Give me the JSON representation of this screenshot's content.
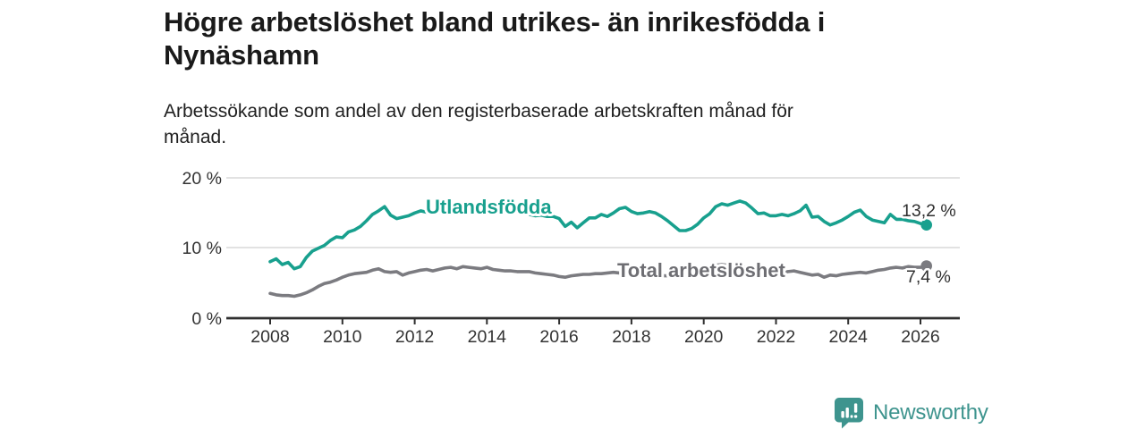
{
  "title": "Högre arbetslöshet bland utrikes- än inrikesfödda i Nynäshamn",
  "title_lines": [
    "Högre arbetslöshet bland utrikes- än inrikesfödda i",
    "Nynäshamn"
  ],
  "subtitle": "Arbetssökande som andel av den registerbaserade arbetskraften månad för månad.",
  "subtitle_lines": [
    "Arbetssökande som andel av den registerbaserade arbetskraften månad för",
    "månad."
  ],
  "branding": {
    "logo_text": "Newsworthy",
    "brand_color": "#3E948E"
  },
  "chart_data": {
    "type": "line",
    "unit": "%",
    "title": "Högre arbetslöshet bland utrikes- än inrikesfödda i Nynäshamn",
    "grid_on": true,
    "value_label_color": "#2f2f2f",
    "x_axis": {
      "ticks": [
        2008,
        2010,
        2012,
        2014,
        2016,
        2018,
        2020,
        2022,
        2024,
        2026
      ],
      "range_years": [
        2006.8,
        2027.1
      ]
    },
    "y_axis": {
      "tick_labels": [
        "20 %",
        "10 %",
        "0 %"
      ],
      "ticks": [
        20,
        10,
        0
      ],
      "range": [
        0,
        21.5
      ],
      "gridlines": [
        20,
        10
      ]
    },
    "series": [
      {
        "name": "Utlandsfödda",
        "color": "#18A08E",
        "label_color": "#18A08E",
        "end_label": "13,2 %",
        "end_value": 13.2,
        "x_start": 2008.0,
        "x_step": 0.166667,
        "values": [
          8.0,
          8.4,
          7.6,
          7.9,
          7.0,
          7.3,
          8.6,
          9.5,
          9.9,
          10.3,
          11.0,
          11.5,
          11.4,
          12.2,
          12.5,
          13.0,
          13.8,
          14.7,
          15.2,
          15.8,
          14.6,
          14.1,
          14.3,
          14.5,
          14.9,
          15.2,
          15.0,
          14.8,
          15.0,
          15.2,
          15.3,
          15.5,
          15.3,
          15.1,
          15.3,
          15.4,
          15.3,
          15.4,
          15.5,
          15.2,
          15.0,
          15.1,
          14.9,
          14.7,
          14.5,
          14.6,
          14.4,
          14.4,
          14.1,
          13.0,
          13.6,
          12.8,
          13.5,
          14.2,
          14.2,
          14.7,
          14.4,
          14.9,
          15.5,
          15.7,
          15.1,
          14.8,
          14.9,
          15.1,
          14.9,
          14.4,
          13.8,
          13.1,
          12.4,
          12.4,
          12.7,
          13.3,
          14.2,
          14.8,
          15.8,
          16.2,
          16.0,
          16.3,
          16.6,
          16.3,
          15.6,
          14.8,
          14.9,
          14.5,
          14.5,
          14.7,
          14.5,
          14.8,
          15.2,
          16.0,
          14.3,
          14.4,
          13.7,
          13.2,
          13.5,
          13.9,
          14.4,
          15.0,
          15.3,
          14.4,
          13.9,
          13.7,
          13.5,
          14.7,
          14.0,
          14.0,
          13.8,
          13.7,
          13.4,
          13.2
        ]
      },
      {
        "name": "Total arbetslöshet",
        "color": "#7B7B80",
        "label_color": "#6E6E73",
        "end_label": "7,4 %",
        "end_value": 7.4,
        "x_start": 2008.0,
        "x_step": 0.166667,
        "values": [
          3.5,
          3.3,
          3.2,
          3.2,
          3.1,
          3.3,
          3.6,
          4.0,
          4.5,
          4.9,
          5.1,
          5.4,
          5.8,
          6.1,
          6.3,
          6.4,
          6.5,
          6.8,
          7.0,
          6.6,
          6.5,
          6.6,
          6.1,
          6.4,
          6.6,
          6.8,
          6.9,
          6.7,
          6.9,
          7.1,
          7.2,
          7.0,
          7.3,
          7.2,
          7.1,
          7.0,
          7.2,
          6.9,
          6.8,
          6.7,
          6.7,
          6.6,
          6.6,
          6.6,
          6.4,
          6.3,
          6.2,
          6.1,
          5.9,
          5.8,
          6.0,
          6.1,
          6.2,
          6.2,
          6.3,
          6.3,
          6.4,
          6.5,
          6.4,
          6.3,
          6.2,
          6.1,
          6.1,
          6.0,
          6.0,
          6.0,
          6.0,
          5.9,
          5.9,
          6.0,
          6.1,
          6.3,
          6.6,
          7.1,
          7.5,
          7.6,
          7.5,
          7.4,
          7.3,
          7.2,
          7.0,
          6.9,
          6.8,
          6.7,
          6.6,
          6.6,
          6.6,
          6.7,
          6.5,
          6.3,
          6.1,
          6.2,
          5.8,
          6.1,
          6.0,
          6.2,
          6.3,
          6.4,
          6.5,
          6.4,
          6.6,
          6.8,
          6.9,
          7.1,
          7.2,
          7.1,
          7.3,
          7.2,
          7.2,
          7.4
        ]
      }
    ]
  }
}
